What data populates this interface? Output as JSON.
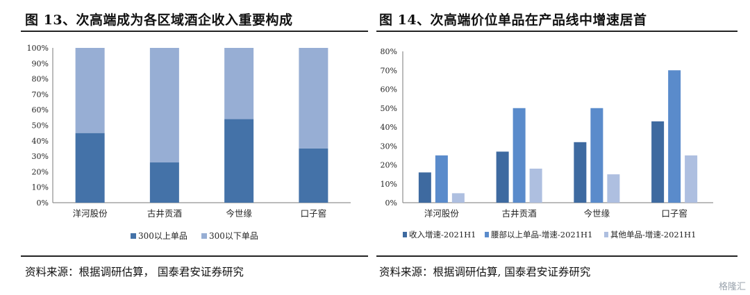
{
  "chart_data": [
    {
      "type": "bar",
      "stacked": true,
      "figure_title": "图 13、次高端成为各区域酒企收入重要构成",
      "source": "资料来源：根据调研估算， 国泰君安证券研究",
      "categories": [
        "洋河股份",
        "古井贡酒",
        "今世缘",
        "口子窖"
      ],
      "series": [
        {
          "name": "300以上单品",
          "values": [
            45,
            26,
            54,
            35
          ],
          "color": "#4472a8"
        },
        {
          "name": "300以下单品",
          "values": [
            55,
            74,
            46,
            65
          ],
          "color": "#97aed4"
        }
      ],
      "y_ticks": [
        "0%",
        "10%",
        "20%",
        "30%",
        "40%",
        "50%",
        "60%",
        "70%",
        "80%",
        "90%",
        "100%"
      ],
      "ylim": [
        0,
        100
      ],
      "grid": false,
      "legend_position": "bottom"
    },
    {
      "type": "bar",
      "stacked": false,
      "figure_title": "图 14、次高端价位单品在产品线中增速居首",
      "source": "资料来源：根据调研估算, 国泰君安证券研究",
      "categories": [
        "洋河股份",
        "古井贡酒",
        "今世缘",
        "口子窖"
      ],
      "series": [
        {
          "name": "收入增速-2021H1",
          "values": [
            16,
            27,
            32,
            43
          ],
          "color": "#3e6aa0"
        },
        {
          "name": "腰部以上单品-增速-2021H1",
          "values": [
            25,
            50,
            50,
            70
          ],
          "color": "#5a8bcb"
        },
        {
          "name": "其他单品-增速-2021H1",
          "values": [
            5,
            18,
            15,
            25
          ],
          "color": "#aebfe0"
        }
      ],
      "y_ticks": [
        "0%",
        "10%",
        "20%",
        "30%",
        "40%",
        "50%",
        "60%",
        "70%",
        "80%"
      ],
      "ylim": [
        0,
        80
      ],
      "grid": false,
      "legend_position": "bottom"
    }
  ],
  "watermark": "格隆汇"
}
